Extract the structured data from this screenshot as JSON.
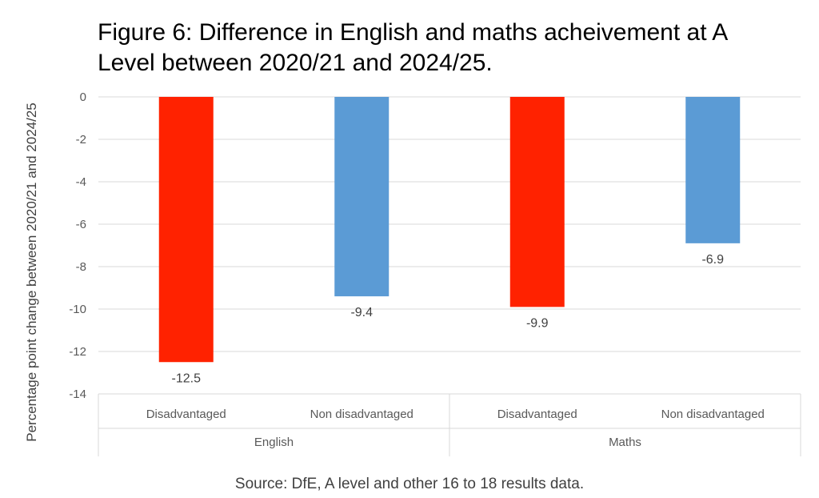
{
  "chart_data": {
    "type": "bar",
    "title": "Figure 6: Difference in English and maths acheivement at A Level between 2020/21 and 2024/25.",
    "ylabel": "Percentage point change between 2020/21 and 2024/25",
    "xlabel": "",
    "ylim": [
      -14,
      0
    ],
    "yticks": [
      0,
      -2,
      -4,
      -6,
      -8,
      -10,
      -12,
      -14
    ],
    "grid": true,
    "groups": [
      "English",
      "Maths"
    ],
    "categories": [
      "Disadvantaged",
      "Non disadvantaged",
      "Disadvantaged",
      "Non disadvantaged"
    ],
    "values": [
      -12.5,
      -9.4,
      -9.9,
      -6.9
    ],
    "data_labels": [
      "-12.5",
      "-9.4",
      "-9.9",
      "-6.9"
    ],
    "colors": [
      "#ff2200",
      "#5b9bd5",
      "#ff2200",
      "#5b9bd5"
    ]
  },
  "source": "Source: DfE, A level and other 16 to 18 results data."
}
